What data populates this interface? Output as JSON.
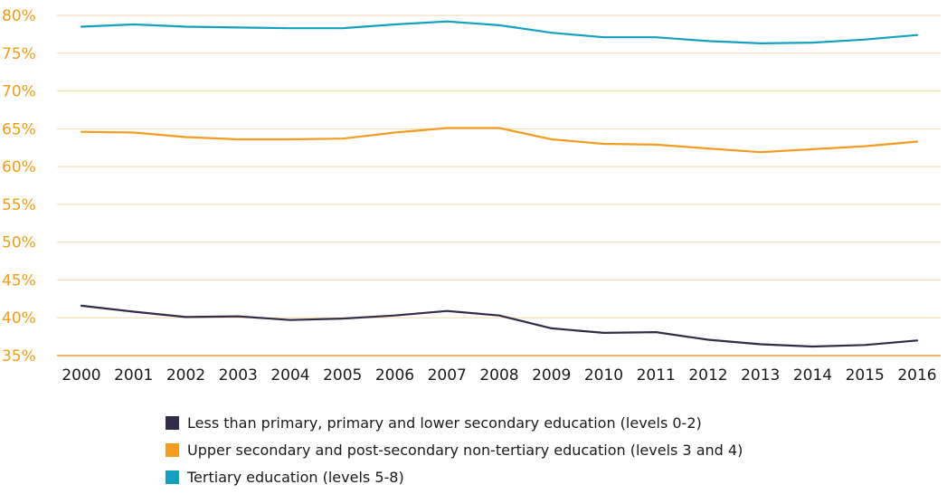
{
  "chart_data": {
    "type": "line",
    "title": "",
    "xlabel": "",
    "ylabel": "",
    "x": [
      "2000",
      "2001",
      "2002",
      "2003",
      "2004",
      "2005",
      "2006",
      "2007",
      "2008",
      "2009",
      "2010",
      "2011",
      "2012",
      "2013",
      "2014",
      "2015",
      "2016"
    ],
    "y_ticks": [
      "35%",
      "40%",
      "45%",
      "50%",
      "55%",
      "60%",
      "65%",
      "70%",
      "75%",
      "80%"
    ],
    "ylim": [
      35,
      80
    ],
    "grid": true,
    "legend_position": "bottom",
    "series": [
      {
        "name": "Less than primary, primary and lower secondary education (levels 0-2)",
        "color": "#342B47",
        "values": [
          41.6,
          40.8,
          40.1,
          40.2,
          39.7,
          39.9,
          40.3,
          40.9,
          40.3,
          38.6,
          38.0,
          38.1,
          37.1,
          36.5,
          36.2,
          36.4,
          37.0
        ]
      },
      {
        "name": "Upper secondary and post-secondary non-tertiary education (levels 3 and 4)",
        "color": "#F39C1F",
        "values": [
          64.6,
          64.5,
          63.9,
          63.6,
          63.6,
          63.7,
          64.5,
          65.1,
          65.1,
          63.6,
          63.0,
          62.9,
          62.4,
          61.9,
          62.3,
          62.7,
          63.3
        ]
      },
      {
        "name": "Tertiary education (levels 5-8)",
        "color": "#14A0BF",
        "values": [
          78.5,
          78.8,
          78.5,
          78.4,
          78.3,
          78.3,
          78.8,
          79.2,
          78.7,
          77.7,
          77.1,
          77.1,
          76.6,
          76.3,
          76.4,
          76.8,
          77.4
        ]
      }
    ]
  }
}
